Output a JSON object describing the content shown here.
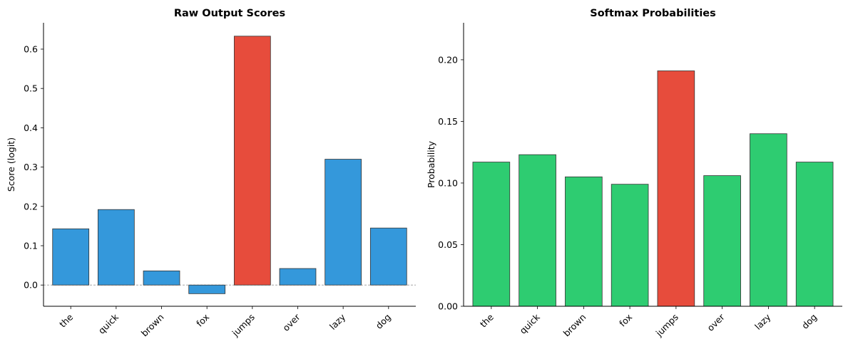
{
  "chart_data": [
    {
      "type": "bar",
      "title": "Raw Output Scores",
      "xlabel": "",
      "ylabel": "Score (logit)",
      "categories": [
        "the",
        "quick",
        "brown",
        "fox",
        "jumps",
        "over",
        "lazy",
        "dog"
      ],
      "values": [
        0.143,
        0.192,
        0.036,
        -0.022,
        0.633,
        0.042,
        0.32,
        0.145
      ],
      "labels": [
        "0.14",
        "0.19",
        "0.04",
        "-0.02",
        "0.63",
        "0.04",
        "0.32",
        "0.15"
      ],
      "colors": [
        "#3498db",
        "#3498db",
        "#3498db",
        "#3498db",
        "#e74c3c",
        "#3498db",
        "#3498db",
        "#3498db"
      ],
      "highlight_index": 4,
      "ylim": [
        -0.054,
        0.667
      ],
      "yticks": [
        0.0,
        0.1,
        0.2,
        0.3,
        0.4,
        0.5,
        0.6
      ],
      "ytick_labels": [
        "0.0",
        "0.1",
        "0.2",
        "0.3",
        "0.4",
        "0.5",
        "0.6"
      ],
      "zero_line": true,
      "grid": false
    },
    {
      "type": "bar",
      "title": "Softmax Probabilities",
      "xlabel": "",
      "ylabel": "Probability",
      "categories": [
        "the",
        "quick",
        "brown",
        "fox",
        "jumps",
        "over",
        "lazy",
        "dog"
      ],
      "values": [
        0.117,
        0.123,
        0.105,
        0.099,
        0.191,
        0.106,
        0.14,
        0.117
      ],
      "labels": [
        "0.117",
        "0.123",
        "0.105",
        "0.099",
        "0.191",
        "0.106",
        "0.140",
        "0.117"
      ],
      "colors": [
        "#2ecc71",
        "#2ecc71",
        "#2ecc71",
        "#2ecc71",
        "#e74c3c",
        "#2ecc71",
        "#2ecc71",
        "#2ecc71"
      ],
      "highlight_index": 4,
      "ylim": [
        0.0,
        0.23
      ],
      "yticks": [
        0.0,
        0.05,
        0.1,
        0.15,
        0.2
      ],
      "ytick_labels": [
        "0.00",
        "0.05",
        "0.10",
        "0.15",
        "0.20"
      ],
      "grid": false
    }
  ]
}
